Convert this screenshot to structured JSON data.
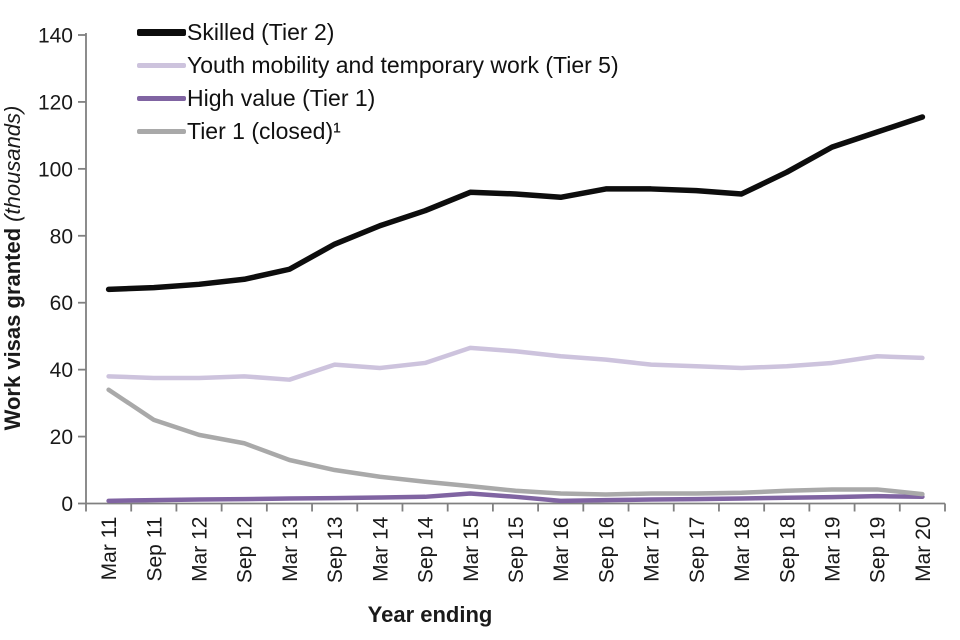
{
  "chart_data": {
    "type": "line",
    "title": "",
    "xlabel": "Year ending",
    "ylabel_bold": "Work visas granted",
    "ylabel_italic": "(thousands)",
    "ylim": [
      0,
      140
    ],
    "y_ticks": [
      0,
      20,
      40,
      60,
      80,
      100,
      120,
      140
    ],
    "grid": false,
    "legend_position": "top-left-inside",
    "axis_color": "#808080",
    "text_color": "#1a1a1a",
    "categories": [
      "Mar 11",
      "Sep 11",
      "Mar 12",
      "Sep 12",
      "Mar 13",
      "Sep 13",
      "Mar 14",
      "Sep 14",
      "Mar 15",
      "Sep 15",
      "Mar 16",
      "Sep 16",
      "Mar 17",
      "Sep 17",
      "Mar 18",
      "Sep 18",
      "Mar 19",
      "Sep 19",
      "Mar 20"
    ],
    "series": [
      {
        "name": "Skilled (Tier 2)",
        "color": "#0d0d0d",
        "width": 5.5,
        "values": [
          64,
          64.5,
          65.5,
          67,
          70,
          77.5,
          83,
          87.5,
          93,
          92.5,
          91.5,
          94,
          94,
          93.5,
          92.5,
          99,
          106.5,
          111,
          115.5
        ]
      },
      {
        "name": "Youth mobility and temporary work (Tier 5)",
        "color": "#cdc3dd",
        "width": 4.5,
        "values": [
          38,
          37.5,
          37.5,
          38,
          37,
          41.5,
          40.5,
          42,
          46.5,
          45.5,
          44,
          43,
          41.5,
          41,
          40.5,
          41,
          42,
          44,
          43.5
        ]
      },
      {
        "name": "High value (Tier 1)",
        "color": "#8064a2",
        "width": 4.5,
        "values": [
          0.8,
          1,
          1.2,
          1.3,
          1.5,
          1.6,
          1.8,
          2,
          3,
          2,
          0.8,
          1,
          1.2,
          1.3,
          1.5,
          1.7,
          1.9,
          2.2,
          2
        ]
      },
      {
        "name": "Tier 1 (closed)¹",
        "color": "#a9a9a9",
        "width": 4.5,
        "values": [
          34,
          25,
          20.5,
          18,
          13,
          10,
          8,
          6.5,
          5.2,
          3.8,
          3,
          2.7,
          3,
          3,
          3.2,
          3.8,
          4.2,
          4.2,
          2.8
        ]
      }
    ]
  }
}
